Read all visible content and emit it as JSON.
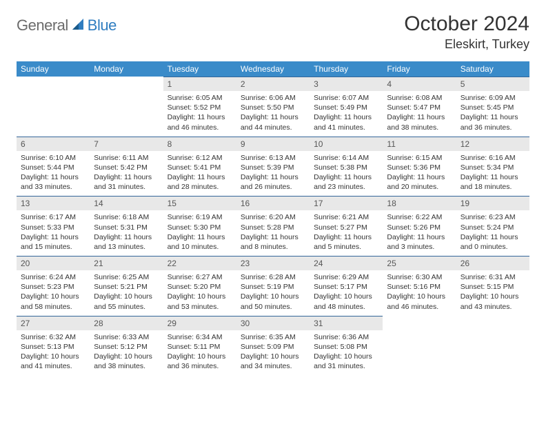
{
  "logo": {
    "general": "General",
    "blue": "Blue"
  },
  "title": "October 2024",
  "location": "Eleskirt, Turkey",
  "colors": {
    "header_bg": "#3a8bc9",
    "header_text": "#ffffff",
    "daynum_bg": "#e8e8e8",
    "daynum_border": "#336699",
    "logo_gray": "#6b6b6b",
    "logo_blue": "#2f7dc0",
    "text": "#333333"
  },
  "day_labels": [
    "Sunday",
    "Monday",
    "Tuesday",
    "Wednesday",
    "Thursday",
    "Friday",
    "Saturday"
  ],
  "weeks": [
    [
      null,
      null,
      {
        "n": "1",
        "sr": "6:05 AM",
        "ss": "5:52 PM",
        "dl": "11 hours and 46 minutes."
      },
      {
        "n": "2",
        "sr": "6:06 AM",
        "ss": "5:50 PM",
        "dl": "11 hours and 44 minutes."
      },
      {
        "n": "3",
        "sr": "6:07 AM",
        "ss": "5:49 PM",
        "dl": "11 hours and 41 minutes."
      },
      {
        "n": "4",
        "sr": "6:08 AM",
        "ss": "5:47 PM",
        "dl": "11 hours and 38 minutes."
      },
      {
        "n": "5",
        "sr": "6:09 AM",
        "ss": "5:45 PM",
        "dl": "11 hours and 36 minutes."
      }
    ],
    [
      {
        "n": "6",
        "sr": "6:10 AM",
        "ss": "5:44 PM",
        "dl": "11 hours and 33 minutes."
      },
      {
        "n": "7",
        "sr": "6:11 AM",
        "ss": "5:42 PM",
        "dl": "11 hours and 31 minutes."
      },
      {
        "n": "8",
        "sr": "6:12 AM",
        "ss": "5:41 PM",
        "dl": "11 hours and 28 minutes."
      },
      {
        "n": "9",
        "sr": "6:13 AM",
        "ss": "5:39 PM",
        "dl": "11 hours and 26 minutes."
      },
      {
        "n": "10",
        "sr": "6:14 AM",
        "ss": "5:38 PM",
        "dl": "11 hours and 23 minutes."
      },
      {
        "n": "11",
        "sr": "6:15 AM",
        "ss": "5:36 PM",
        "dl": "11 hours and 20 minutes."
      },
      {
        "n": "12",
        "sr": "6:16 AM",
        "ss": "5:34 PM",
        "dl": "11 hours and 18 minutes."
      }
    ],
    [
      {
        "n": "13",
        "sr": "6:17 AM",
        "ss": "5:33 PM",
        "dl": "11 hours and 15 minutes."
      },
      {
        "n": "14",
        "sr": "6:18 AM",
        "ss": "5:31 PM",
        "dl": "11 hours and 13 minutes."
      },
      {
        "n": "15",
        "sr": "6:19 AM",
        "ss": "5:30 PM",
        "dl": "11 hours and 10 minutes."
      },
      {
        "n": "16",
        "sr": "6:20 AM",
        "ss": "5:28 PM",
        "dl": "11 hours and 8 minutes."
      },
      {
        "n": "17",
        "sr": "6:21 AM",
        "ss": "5:27 PM",
        "dl": "11 hours and 5 minutes."
      },
      {
        "n": "18",
        "sr": "6:22 AM",
        "ss": "5:26 PM",
        "dl": "11 hours and 3 minutes."
      },
      {
        "n": "19",
        "sr": "6:23 AM",
        "ss": "5:24 PM",
        "dl": "11 hours and 0 minutes."
      }
    ],
    [
      {
        "n": "20",
        "sr": "6:24 AM",
        "ss": "5:23 PM",
        "dl": "10 hours and 58 minutes."
      },
      {
        "n": "21",
        "sr": "6:25 AM",
        "ss": "5:21 PM",
        "dl": "10 hours and 55 minutes."
      },
      {
        "n": "22",
        "sr": "6:27 AM",
        "ss": "5:20 PM",
        "dl": "10 hours and 53 minutes."
      },
      {
        "n": "23",
        "sr": "6:28 AM",
        "ss": "5:19 PM",
        "dl": "10 hours and 50 minutes."
      },
      {
        "n": "24",
        "sr": "6:29 AM",
        "ss": "5:17 PM",
        "dl": "10 hours and 48 minutes."
      },
      {
        "n": "25",
        "sr": "6:30 AM",
        "ss": "5:16 PM",
        "dl": "10 hours and 46 minutes."
      },
      {
        "n": "26",
        "sr": "6:31 AM",
        "ss": "5:15 PM",
        "dl": "10 hours and 43 minutes."
      }
    ],
    [
      {
        "n": "27",
        "sr": "6:32 AM",
        "ss": "5:13 PM",
        "dl": "10 hours and 41 minutes."
      },
      {
        "n": "28",
        "sr": "6:33 AM",
        "ss": "5:12 PM",
        "dl": "10 hours and 38 minutes."
      },
      {
        "n": "29",
        "sr": "6:34 AM",
        "ss": "5:11 PM",
        "dl": "10 hours and 36 minutes."
      },
      {
        "n": "30",
        "sr": "6:35 AM",
        "ss": "5:09 PM",
        "dl": "10 hours and 34 minutes."
      },
      {
        "n": "31",
        "sr": "6:36 AM",
        "ss": "5:08 PM",
        "dl": "10 hours and 31 minutes."
      },
      null,
      null
    ]
  ]
}
